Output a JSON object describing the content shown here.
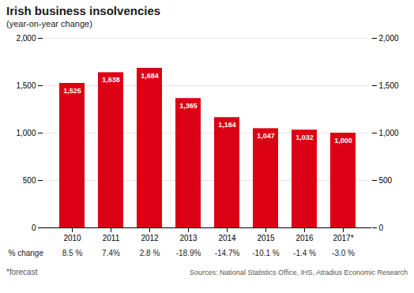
{
  "chart_data": {
    "type": "bar",
    "title": "Irish business insolvencies",
    "subtitle": "(year-on-year change)",
    "categories": [
      "2010",
      "2011",
      "2012",
      "2013",
      "2014",
      "2015",
      "2016",
      "2017*"
    ],
    "values": [
      1525,
      1638,
      1684,
      1365,
      1164,
      1047,
      1032,
      1000
    ],
    "value_labels": [
      "1,525",
      "1,638",
      "1,684",
      "1,365",
      "1,164",
      "1,047",
      "1,032",
      "1,000"
    ],
    "data_labels": true,
    "color": "#dc0014",
    "ylim": [
      0,
      2000
    ],
    "yticks": [
      0,
      500,
      {
        "value": 1000,
        "label": "1,000"
      },
      {
        "value": 1500,
        "label": "1,500"
      },
      {
        "value": 2000,
        "label": "2,000"
      }
    ],
    "grid": true,
    "pct_change_label": "% change",
    "pct_changes": [
      "8.5 %",
      "7.4%",
      "2.8 %",
      "-18.9%",
      "-14.7%",
      "-10.1 %",
      "-1.4 %",
      "-3.0 %"
    ],
    "footnote": "*forecast",
    "source": "Sources: National Statistics Office, IHS, Atradius Economic Research"
  }
}
